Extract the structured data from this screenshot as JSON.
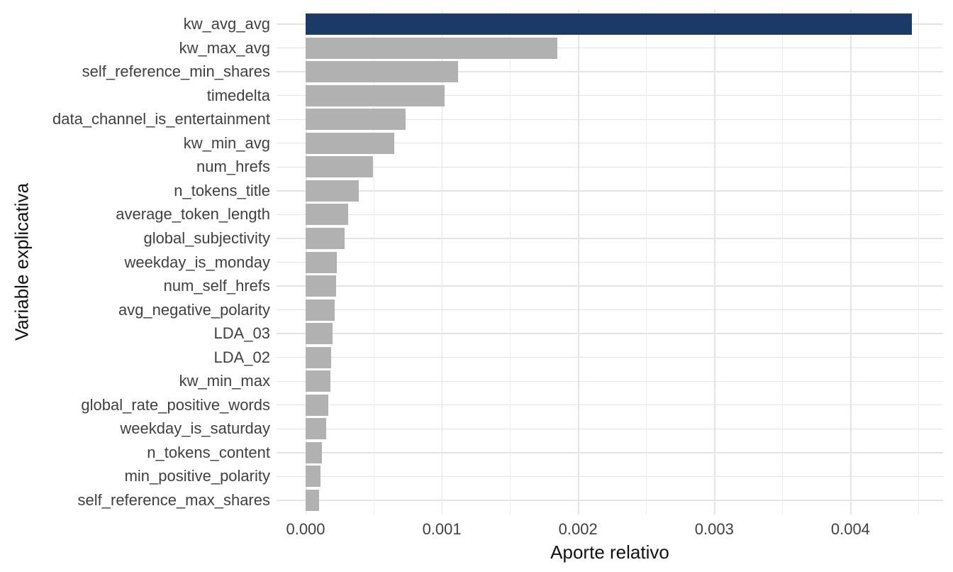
{
  "chart_data": {
    "type": "bar",
    "orientation": "horizontal",
    "title": "",
    "xlabel": "Aporte relativo",
    "ylabel": "Variable explicativa",
    "categories": [
      "kw_avg_avg",
      "kw_max_avg",
      "self_reference_min_shares",
      "timedelta",
      "data_channel_is_entertainment",
      "kw_min_avg",
      "num_hrefs",
      "n_tokens_title",
      "average_token_length",
      "global_subjectivity",
      "weekday_is_monday",
      "num_self_hrefs",
      "avg_negative_polarity",
      "LDA_03",
      "LDA_02",
      "kw_min_max",
      "global_rate_positive_words",
      "weekday_is_saturday",
      "n_tokens_content",
      "min_positive_polarity",
      "self_reference_max_shares"
    ],
    "values": [
      0.00445,
      0.00185,
      0.00112,
      0.00102,
      0.000735,
      0.00065,
      0.000495,
      0.00039,
      0.00031,
      0.000285,
      0.00023,
      0.000225,
      0.000215,
      0.0002,
      0.000185,
      0.00018,
      0.000165,
      0.00015,
      0.00012,
      0.000108,
      0.0001
    ],
    "highlight": {
      "category": "kw_avg_avg",
      "index": 0,
      "color": "#1c3a68"
    },
    "bar_color": "#b1b1b1",
    "x_ticks": {
      "labels": [
        "0.000",
        "0.001",
        "0.002",
        "0.003",
        "0.004"
      ],
      "values": [
        0,
        0.001,
        0.002,
        0.003,
        0.004
      ]
    },
    "x_minor_ticks": [
      0.0005,
      0.0015,
      0.0025,
      0.0035,
      0.0045
    ],
    "xlim": [
      -0.00022,
      0.00467
    ],
    "grid": true,
    "legend": "none",
    "colors": {
      "grid_major": "#e4e4e4",
      "grid_minor": "#ececec",
      "axis_text": "#404040",
      "axis_title": "#111111",
      "background": "#ffffff"
    }
  }
}
